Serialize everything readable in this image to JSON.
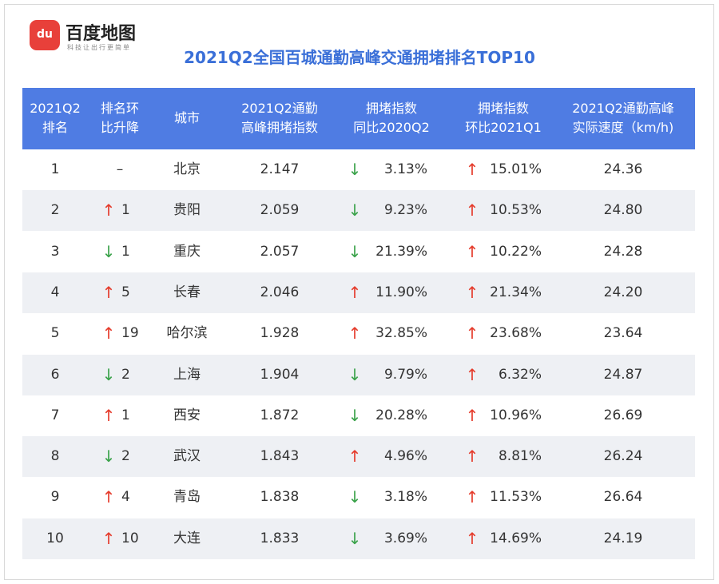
{
  "logo": {
    "icon": "du",
    "name": "百度地图",
    "tagline": "科技让出行更简单"
  },
  "title": "2021Q2全国百城通勤高峰交通拥堵排名TOP10",
  "table": {
    "header": [
      [
        "2021Q2",
        "排名"
      ],
      [
        "排名环",
        "比升降"
      ],
      [
        "城市"
      ],
      [
        "2021Q2通勤",
        "高峰拥堵指数"
      ],
      [
        "拥堵指数",
        "同比2020Q2"
      ],
      [
        "拥堵指数",
        "环比2021Q1"
      ],
      [
        "2021Q2通勤高峰",
        "实际速度（km/h)"
      ]
    ],
    "rows": [
      {
        "rank": "1",
        "change": {
          "value": "–"
        },
        "city": "北京",
        "index": "2.147",
        "yoy": {
          "arrow": "↓",
          "value": "3.13%"
        },
        "qoq": {
          "arrow": "↑",
          "value": "15.01%"
        },
        "speed": "24.36"
      },
      {
        "rank": "2",
        "change": {
          "arrow": "↑",
          "value": "1"
        },
        "city": "贵阳",
        "index": "2.059",
        "yoy": {
          "arrow": "↓",
          "value": "9.23%"
        },
        "qoq": {
          "arrow": "↑",
          "value": "10.53%"
        },
        "speed": "24.80"
      },
      {
        "rank": "3",
        "change": {
          "arrow": "↓",
          "value": "1"
        },
        "city": "重庆",
        "index": "2.057",
        "yoy": {
          "arrow": "↓",
          "value": "21.39%"
        },
        "qoq": {
          "arrow": "↑",
          "value": "10.22%"
        },
        "speed": "24.28"
      },
      {
        "rank": "4",
        "change": {
          "arrow": "↑",
          "value": "5"
        },
        "city": "长春",
        "index": "2.046",
        "yoy": {
          "arrow": "↑",
          "value": "11.90%"
        },
        "qoq": {
          "arrow": "↑",
          "value": "21.34%"
        },
        "speed": "24.20"
      },
      {
        "rank": "5",
        "change": {
          "arrow": "↑",
          "value": "19"
        },
        "city": "哈尔滨",
        "index": "1.928",
        "yoy": {
          "arrow": "↑",
          "value": "32.85%"
        },
        "qoq": {
          "arrow": "↑",
          "value": "23.68%"
        },
        "speed": "23.64"
      },
      {
        "rank": "6",
        "change": {
          "arrow": "↓",
          "value": "2"
        },
        "city": "上海",
        "index": "1.904",
        "yoy": {
          "arrow": "↓",
          "value": "9.79%"
        },
        "qoq": {
          "arrow": "↑",
          "value": "6.32%"
        },
        "speed": "24.87"
      },
      {
        "rank": "7",
        "change": {
          "arrow": "↑",
          "value": "1"
        },
        "city": "西安",
        "index": "1.872",
        "yoy": {
          "arrow": "↓",
          "value": "20.28%"
        },
        "qoq": {
          "arrow": "↑",
          "value": "10.96%"
        },
        "speed": "26.69"
      },
      {
        "rank": "8",
        "change": {
          "arrow": "↓",
          "value": "2"
        },
        "city": "武汉",
        "index": "1.843",
        "yoy": {
          "arrow": "↑",
          "value": "4.96%"
        },
        "qoq": {
          "arrow": "↑",
          "value": "8.81%"
        },
        "speed": "26.24"
      },
      {
        "rank": "9",
        "change": {
          "arrow": "↑",
          "value": "4"
        },
        "city": "青岛",
        "index": "1.838",
        "yoy": {
          "arrow": "↓",
          "value": "3.18%"
        },
        "qoq": {
          "arrow": "↑",
          "value": "11.53%"
        },
        "speed": "26.64"
      },
      {
        "rank": "10",
        "change": {
          "arrow": "↑",
          "value": "10"
        },
        "city": "大连",
        "index": "1.833",
        "yoy": {
          "arrow": "↓",
          "value": "3.69%"
        },
        "qoq": {
          "arrow": "↑",
          "value": "14.69%"
        },
        "speed": "24.19"
      }
    ]
  }
}
